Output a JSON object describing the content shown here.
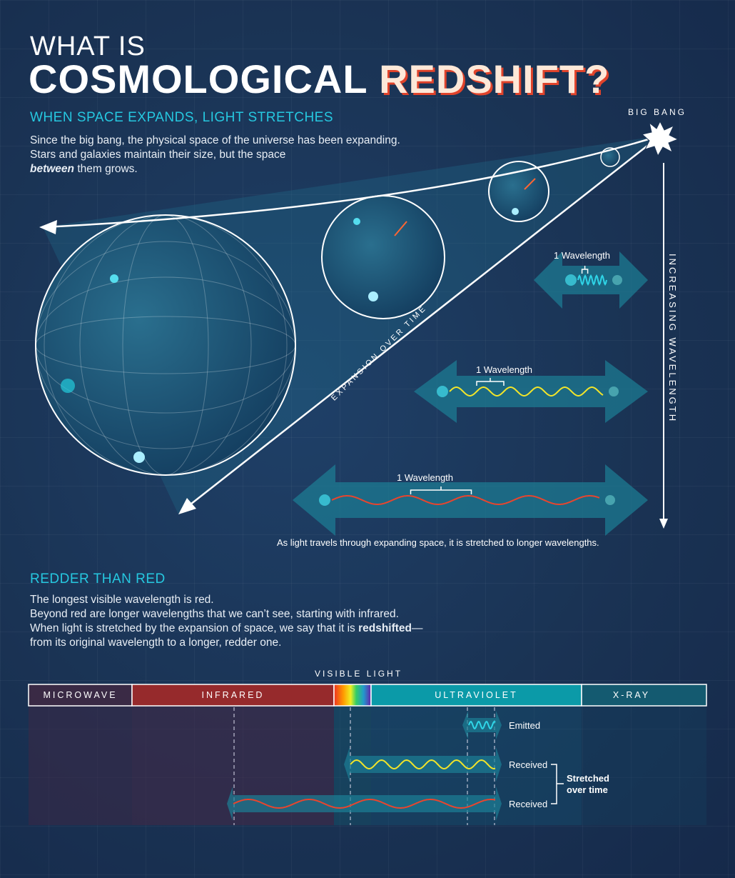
{
  "title": {
    "line1": "WHAT IS",
    "line2_white": "COSMOLOGICAL ",
    "line2_red": "REDSHIFT?"
  },
  "section1": {
    "heading": "WHEN SPACE EXPANDS, LIGHT STRETCHES",
    "para_line1": "Since the big bang, the physical space of the universe has been expanding.",
    "para_line2": "Stars and galaxies maintain their size, but the space",
    "para_emph": "between",
    "para_line3_rest": " them grows."
  },
  "diagram": {
    "big_bang": "BIG BANG",
    "expansion_label": "EXPANSION OVER TIME",
    "increasing_label": "INCREASING WAVELENGTH",
    "wavelength_labels": [
      "1 Wavelength",
      "1 Wavelength",
      "1 Wavelength"
    ],
    "caption": "As light travels through expanding space, it is stretched to longer wavelengths.",
    "wave_colors": [
      "#2fd6e8",
      "#f2e52a",
      "#e8452e"
    ]
  },
  "section2": {
    "heading": "REDDER THAN RED",
    "lines": [
      "The longest visible wavelength is red.",
      "Beyond red are longer wavelengths that we can’t see, starting with infrared.",
      "When light is stretched by the expansion of space, we say that it is "
    ],
    "emph": "redshifted",
    "line3_end": "—",
    "line4": "from its original wavelength to a longer, redder one."
  },
  "spectrum": {
    "visible_label": "VISIBLE LIGHT",
    "bands": [
      {
        "label": "MICROWAVE",
        "color": "#3a2a45"
      },
      {
        "label": "INFRARED",
        "color": "#962a2c"
      },
      {
        "label": "",
        "color": "rainbow"
      },
      {
        "label": "ULTRAVIOLET",
        "color": "#0b9aa8"
      },
      {
        "label": "X-RAY",
        "color": "#145a70"
      }
    ],
    "emitted": "Emitted",
    "received1": "Received",
    "received2": "Received",
    "stretched": "Stretched",
    "over_time": "over time"
  }
}
